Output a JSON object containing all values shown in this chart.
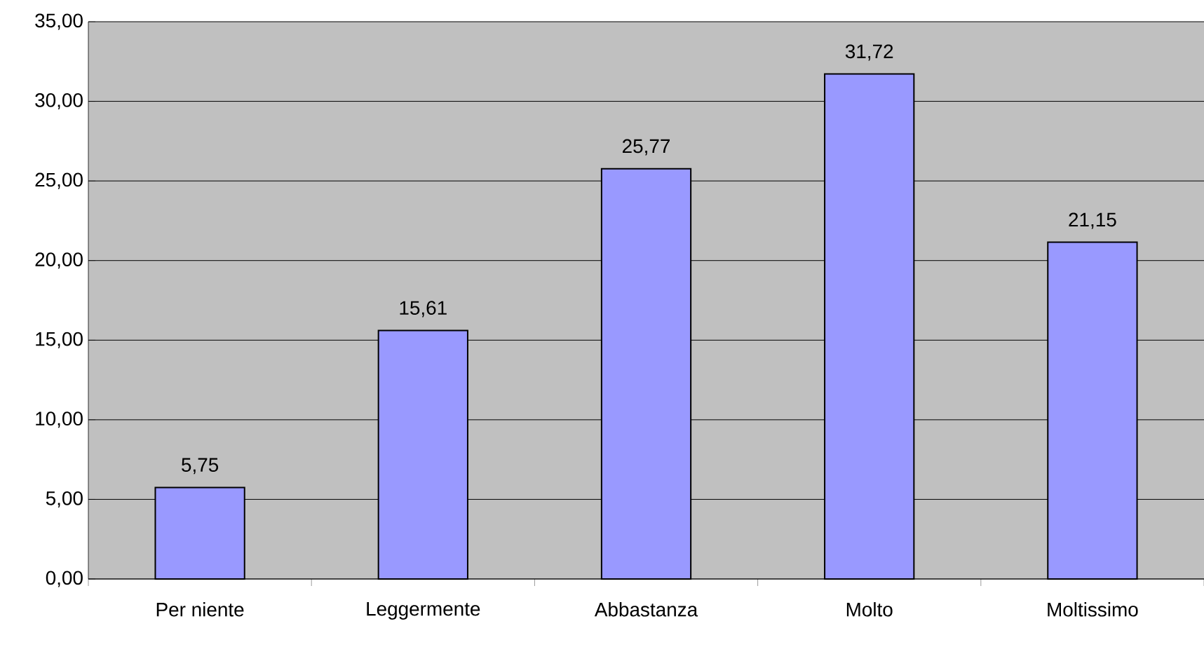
{
  "chart_data": {
    "type": "bar",
    "categories": [
      "Per niente",
      "Leggermente",
      "Abbastanza",
      "Molto",
      "Moltissimo"
    ],
    "values": [
      5.75,
      15.61,
      25.77,
      31.72,
      21.15
    ],
    "value_labels": [
      "5,75",
      "15,61",
      "25,77",
      "31,72",
      "21,15"
    ],
    "color": "#9999ff",
    "ylim": [
      0,
      35
    ],
    "yticks": [
      {
        "value": 0,
        "label": "0,00"
      },
      {
        "value": 5,
        "label": "5,00"
      },
      {
        "value": 10,
        "label": "10,00"
      },
      {
        "value": 15,
        "label": "15,00"
      },
      {
        "value": 20,
        "label": "20,00"
      },
      {
        "value": 25,
        "label": "25,00"
      },
      {
        "value": 30,
        "label": "30,00"
      },
      {
        "value": 35,
        "label": "35,00"
      }
    ],
    "grid": "y"
  }
}
